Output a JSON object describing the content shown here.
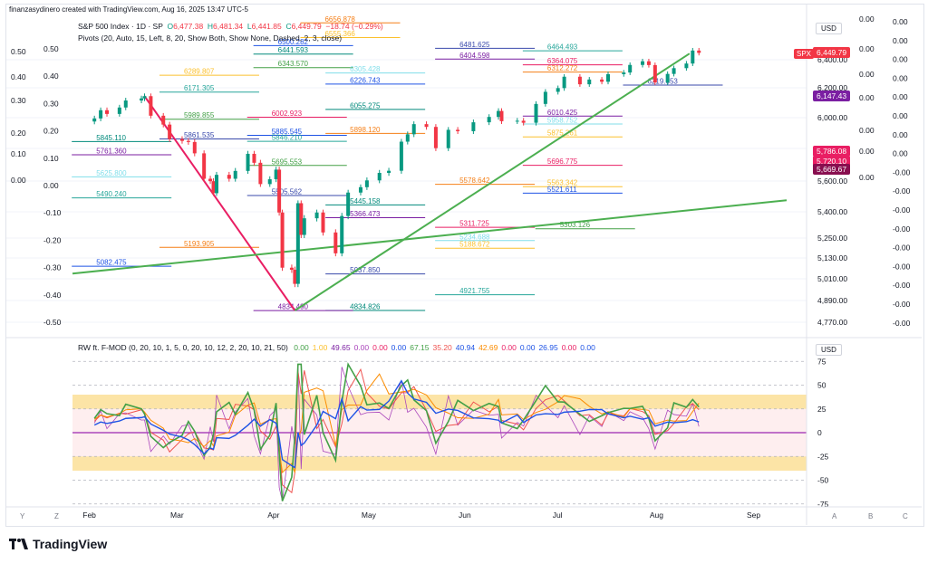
{
  "header": {
    "created_text": "finanzasydinero created with TradingView.com, Aug 16, 2025 13:47 UTC-5"
  },
  "legend": {
    "symbol_line": "S&P 500 Index · 1D · SP",
    "ohlc": {
      "o": "6,477.38",
      "h": "6,481.34",
      "l": "6,441.85",
      "c": "6,449.79",
      "chg": "−18.74 (−0.29%)"
    },
    "pivots_line": "Pivots (20, Auto, 15, Left, 8, 20, Show Both, Show None, Dashed, 2, 3, close)",
    "oscillator_name": "RW ft. F-MOD (0, 20, 10, 1, 5, 0, 20, 10, 12, 2, 20, 10, 21, 50)",
    "oscillator_values": [
      {
        "v": "0.00",
        "color": "#43a047"
      },
      {
        "v": "1.00",
        "color": "#fbc02d"
      },
      {
        "v": "49.65",
        "color": "#7b1fa2"
      },
      {
        "v": "0.00",
        "color": "#ab47bc"
      },
      {
        "v": "0.00",
        "color": "#e91e63"
      },
      {
        "v": "0.00",
        "color": "#1e53e5"
      },
      {
        "v": "67.15",
        "color": "#43a047"
      },
      {
        "v": "35.20",
        "color": "#ef5350"
      },
      {
        "v": "40.94",
        "color": "#1e53e5"
      },
      {
        "v": "42.69",
        "color": "#fb8c00"
      },
      {
        "v": "0.00",
        "color": "#e91e63"
      },
      {
        "v": "0.00",
        "color": "#1e53e5"
      },
      {
        "v": "26.95",
        "color": "#1e53e5"
      },
      {
        "v": "0.00",
        "color": "#e91e63"
      },
      {
        "v": "0.00",
        "color": "#1e53e5"
      }
    ]
  },
  "currency": "USD",
  "spx_tag": "SPX",
  "price_tags": [
    {
      "label": "6,449.79",
      "color": "#f23645",
      "price": 6449.79
    },
    {
      "label": "6,147.43",
      "color": "#7b1fa2",
      "price": 6147.43
    },
    {
      "label": "5,786.08",
      "color": "#e91e63",
      "price": 5786.08
    },
    {
      "label": "5,720.10",
      "color": "#e91e63",
      "price": 5720.1
    },
    {
      "label": "5,669.67",
      "color": "#880e4f",
      "price": 5669.67
    }
  ],
  "pivot_labels": [
    {
      "t": "6656.878",
      "p": 6656.878,
      "m": "2025-04-17"
    },
    {
      "t": "6555.366",
      "p": 6555.366,
      "m": "2025-04-17"
    },
    {
      "t": "6500.282",
      "p": 6500.282,
      "m": "2025-04-02"
    },
    {
      "t": "6481.625",
      "p": 6481.625,
      "m": "2025-05-30"
    },
    {
      "t": "6464.493",
      "p": 6464.493,
      "m": "2025-06-27"
    },
    {
      "t": "6441.593",
      "p": 6441.593,
      "m": "2025-04-02"
    },
    {
      "t": "6404.598",
      "p": 6404.598,
      "m": "2025-05-30"
    },
    {
      "t": "6364.075",
      "p": 6364.075,
      "m": "2025-06-27"
    },
    {
      "t": "6343.570",
      "p": 6343.57,
      "m": "2025-04-02"
    },
    {
      "t": "6305.428",
      "p": 6305.428,
      "m": "2025-04-25"
    },
    {
      "t": "6312.272",
      "p": 6312.272,
      "m": "2025-06-27"
    },
    {
      "t": "6289.807",
      "p": 6289.807,
      "m": "2025-03-03"
    },
    {
      "t": "6226.743",
      "p": 6226.743,
      "m": "2025-04-25"
    },
    {
      "t": "6219.653",
      "p": 6219.653,
      "m": "2025-07-29"
    },
    {
      "t": "6171.305",
      "p": 6171.305,
      "m": "2025-03-03"
    },
    {
      "t": "6055.275",
      "p": 6055.275,
      "m": "2025-04-25"
    },
    {
      "t": "6010.425",
      "p": 6010.425,
      "m": "2025-06-27"
    },
    {
      "t": "6002.923",
      "p": 6002.923,
      "m": "2025-03-31"
    },
    {
      "t": "5989.855",
      "p": 5989.855,
      "m": "2025-03-03"
    },
    {
      "t": "5958.752",
      "p": 5958.752,
      "m": "2025-06-27"
    },
    {
      "t": "5898.120",
      "p": 5898.12,
      "m": "2025-04-25"
    },
    {
      "t": "5875.261",
      "p": 5875.261,
      "m": "2025-06-27"
    },
    {
      "t": "5885.545",
      "p": 5885.545,
      "m": "2025-03-31"
    },
    {
      "t": "5861.535",
      "p": 5861.535,
      "m": "2025-03-03"
    },
    {
      "t": "5846.210",
      "p": 5846.21,
      "m": "2025-03-31"
    },
    {
      "t": "5845.110",
      "p": 5845.11,
      "m": "2025-02-03"
    },
    {
      "t": "5761.360",
      "p": 5761.36,
      "m": "2025-02-03"
    },
    {
      "t": "5696.775",
      "p": 5696.775,
      "m": "2025-06-27"
    },
    {
      "t": "5695.553",
      "p": 5695.553,
      "m": "2025-03-31"
    },
    {
      "t": "5625.800",
      "p": 5625.8,
      "m": "2025-02-03"
    },
    {
      "t": "5578.642",
      "p": 5578.642,
      "m": "2025-05-30"
    },
    {
      "t": "5563.342",
      "p": 5563.342,
      "m": "2025-06-27"
    },
    {
      "t": "5521.611",
      "p": 5521.611,
      "m": "2025-06-27"
    },
    {
      "t": "5505.562",
      "p": 5505.562,
      "m": "2025-03-31"
    },
    {
      "t": "5490.240",
      "p": 5490.24,
      "m": "2025-02-03"
    },
    {
      "t": "5445.158",
      "p": 5445.158,
      "m": "2025-04-25"
    },
    {
      "t": "5366.473",
      "p": 5366.473,
      "m": "2025-04-25"
    },
    {
      "t": "5311.725",
      "p": 5311.725,
      "m": "2025-05-30"
    },
    {
      "t": "5303.126",
      "p": 5303.126,
      "m": "2025-07-01"
    },
    {
      "t": "5234.688",
      "p": 5234.688,
      "m": "2025-05-30"
    },
    {
      "t": "5193.905",
      "p": 5193.905,
      "m": "2025-03-03"
    },
    {
      "t": "5188.672",
      "p": 5188.672,
      "m": "2025-05-30"
    },
    {
      "t": "5082.475",
      "p": 5082.475,
      "m": "2025-02-03"
    },
    {
      "t": "5037.850",
      "p": 5037.85,
      "m": "2025-04-25"
    },
    {
      "t": "4921.755",
      "p": 4921.755,
      "m": "2025-05-30"
    },
    {
      "t": "4834.826",
      "p": 4834.826,
      "m": "2025-04-25"
    },
    {
      "t": "4834.490",
      "p": 4834.49,
      "m": "2025-04-02"
    }
  ],
  "left_scale_labels": [
    "0.50",
    "0.40",
    "0.30",
    "0.20",
    "0.10",
    "0.00",
    "-0.10",
    "-0.20",
    "-0.30",
    "-0.40",
    "-0.50"
  ],
  "right_small_labels": [
    "0.00",
    "0.00",
    "0.00",
    "0.00",
    "0.00",
    "0.00",
    "0.00",
    "0.00",
    "-0.00",
    "-0.00",
    "-0.00",
    "-0.00",
    "-0.00",
    "-0.00",
    "-0.00",
    "-0.00",
    "-0.00"
  ],
  "osc_axis_labels": [
    "75",
    "50",
    "25",
    "0",
    "-25",
    "-50",
    "-75"
  ],
  "time_labels": [
    "Feb",
    "Mar",
    "Apr",
    "May",
    "Jun",
    "Jul",
    "Aug",
    "Sep"
  ],
  "axis_buttons": [
    "Y",
    "Z",
    "A",
    "B",
    "C"
  ],
  "footer": "TradingView",
  "colors": {
    "up": "#089981",
    "down": "#f23645",
    "trend_down": "#e91e63",
    "trend_up": "#4caf50",
    "osc_band": "#fce4a6",
    "osc_band_pink": "#fde2e4"
  },
  "chart_data": {
    "type": "candlestick",
    "title": "S&P 500 Index · 1D · SP",
    "x_range": [
      "2025-01-27",
      "2025-09-12"
    ],
    "y_ticks": [
      6400,
      6200,
      6000,
      5800,
      5600,
      5400,
      5250,
      5130,
      5010,
      4890,
      4770
    ],
    "y_tick_labels": [
      "6,400.00",
      "6,200.00",
      "6,000.00",
      "",
      "5,600.00",
      "5,400.00",
      "5,250.00",
      "5,130.00",
      "5,010.00",
      "4,890.00",
      "4,770.00"
    ],
    "close_series": [
      [
        "2025-02-03",
        5995
      ],
      [
        "2025-02-05",
        6050
      ],
      [
        "2025-02-07",
        6025
      ],
      [
        "2025-02-11",
        6068
      ],
      [
        "2025-02-13",
        6115
      ],
      [
        "2025-02-18",
        6129
      ],
      [
        "2025-02-19",
        6144
      ],
      [
        "2025-02-21",
        6013
      ],
      [
        "2025-02-25",
        5955
      ],
      [
        "2025-02-27",
        5861
      ],
      [
        "2025-03-03",
        5849
      ],
      [
        "2025-03-05",
        5842
      ],
      [
        "2025-03-07",
        5770
      ],
      [
        "2025-03-10",
        5614
      ],
      [
        "2025-03-12",
        5599
      ],
      [
        "2025-03-13",
        5521
      ],
      [
        "2025-03-14",
        5638
      ],
      [
        "2025-03-18",
        5614
      ],
      [
        "2025-03-20",
        5662
      ],
      [
        "2025-03-24",
        5767
      ],
      [
        "2025-03-26",
        5712
      ],
      [
        "2025-03-28",
        5580
      ],
      [
        "2025-03-31",
        5611
      ],
      [
        "2025-04-02",
        5670
      ],
      [
        "2025-04-03",
        5396
      ],
      [
        "2025-04-04",
        5074
      ],
      [
        "2025-04-07",
        5062
      ],
      [
        "2025-04-08",
        4982
      ],
      [
        "2025-04-09",
        5456
      ],
      [
        "2025-04-10",
        5268
      ],
      [
        "2025-04-11",
        5363
      ],
      [
        "2025-04-15",
        5396
      ],
      [
        "2025-04-17",
        5282
      ],
      [
        "2025-04-21",
        5158
      ],
      [
        "2025-04-23",
        5376
      ],
      [
        "2025-04-25",
        5525
      ],
      [
        "2025-04-29",
        5560
      ],
      [
        "2025-05-01",
        5604
      ],
      [
        "2025-05-05",
        5650
      ],
      [
        "2025-05-08",
        5663
      ],
      [
        "2025-05-12",
        5844
      ],
      [
        "2025-05-14",
        5892
      ],
      [
        "2025-05-16",
        5958
      ],
      [
        "2025-05-20",
        5940
      ],
      [
        "2025-05-23",
        5802
      ],
      [
        "2025-05-27",
        5921
      ],
      [
        "2025-05-30",
        5912
      ],
      [
        "2025-06-04",
        5970
      ],
      [
        "2025-06-09",
        6005
      ],
      [
        "2025-06-12",
        6045
      ],
      [
        "2025-06-13",
        5977
      ],
      [
        "2025-06-18",
        5980
      ],
      [
        "2025-06-20",
        5967
      ],
      [
        "2025-06-24",
        6092
      ],
      [
        "2025-06-27",
        6173
      ],
      [
        "2025-07-01",
        6198
      ],
      [
        "2025-07-03",
        6279
      ],
      [
        "2025-07-08",
        6225
      ],
      [
        "2025-07-11",
        6259
      ],
      [
        "2025-07-15",
        6243
      ],
      [
        "2025-07-17",
        6297
      ],
      [
        "2025-07-22",
        6309
      ],
      [
        "2025-07-24",
        6363
      ],
      [
        "2025-07-28",
        6389
      ],
      [
        "2025-07-30",
        6362
      ],
      [
        "2025-08-01",
        6238
      ],
      [
        "2025-08-05",
        6299
      ],
      [
        "2025-08-07",
        6340
      ],
      [
        "2025-08-11",
        6373
      ],
      [
        "2025-08-13",
        6466
      ],
      [
        "2025-08-15",
        6449.79
      ]
    ],
    "trend_lines": [
      {
        "name": "down",
        "from": [
          "2025-02-19",
          6144
        ],
        "to": [
          "2025-04-08",
          4835
        ]
      },
      {
        "name": "up",
        "from": [
          "2025-04-08",
          4835
        ],
        "to": [
          "2025-08-12",
          6445
        ]
      },
      {
        "name": "long",
        "from": [
          "2025-01-27",
          5040
        ],
        "to": [
          "2025-09-12",
          5475
        ]
      }
    ]
  }
}
